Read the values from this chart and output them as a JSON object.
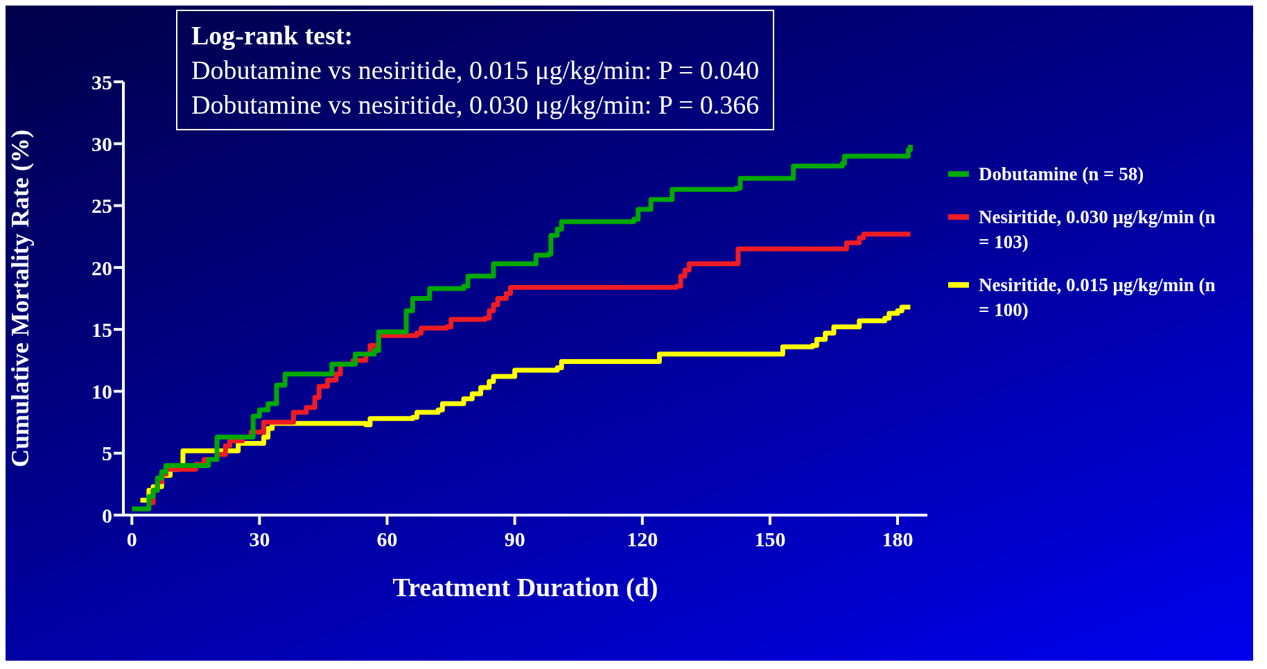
{
  "chart_data": {
    "type": "step",
    "xlabel": "Treatment Duration (d)",
    "ylabel": "Cumulative Mortality Rate (%)",
    "annotations": [
      "Log-rank test:",
      "Dobutamine vs nesiritide, 0.015 μg/kg/min: P = 0.040",
      "Dobutamine vs nesiritide, 0.030 μg/kg/min: P = 0.366"
    ],
    "xlim": [
      -2,
      187
    ],
    "xticks": [
      0,
      30,
      60,
      90,
      120,
      150,
      180
    ],
    "ylim": [
      0,
      35
    ],
    "yticks": [
      0,
      5,
      10,
      15,
      20,
      25,
      30,
      35
    ],
    "grid": false,
    "legend": "right",
    "marker": "none",
    "line_style": "solid",
    "series": [
      {
        "name": "Dobutamine (n = 58)",
        "color": "#00a800",
        "x": [
          0,
          3,
          4,
          5,
          6,
          7,
          8,
          17,
          18,
          20,
          28,
          28.5,
          30,
          32,
          34,
          36,
          46,
          47,
          52,
          52.5,
          57,
          58,
          64,
          64.5,
          66,
          70,
          78,
          79,
          84,
          85,
          94,
          95,
          98,
          98.5,
          100,
          101,
          118,
          119,
          122,
          127,
          142,
          143,
          155,
          155.5,
          167,
          167.5,
          182,
          182.5,
          183
        ],
        "values": [
          0.5,
          0.5,
          1.5,
          2,
          3,
          3.5,
          4,
          4,
          4.5,
          6.3,
          6.3,
          8,
          8.5,
          9,
          10.5,
          11.4,
          11.4,
          12.2,
          12.2,
          13,
          13.3,
          14.8,
          14.8,
          16.5,
          17.5,
          18.3,
          18.5,
          19.3,
          19.3,
          20.3,
          20.3,
          21,
          21.1,
          22.6,
          23.1,
          23.7,
          23.9,
          24.7,
          25.5,
          26.3,
          26.4,
          27.2,
          27.2,
          28.2,
          28.4,
          29,
          29,
          29.5,
          29.9
        ]
      },
      {
        "name": "Nesiritide, 0.030 μg/kg/min (n = 103)",
        "color": "#ee1c24",
        "x": [
          4,
          5,
          6,
          7,
          8,
          14,
          15,
          17,
          20,
          22,
          23,
          26,
          28,
          31,
          37,
          38,
          41,
          43,
          44,
          46,
          48,
          49,
          52,
          55,
          56,
          58,
          67,
          68,
          74,
          75,
          83,
          84,
          85,
          86,
          88,
          89,
          128,
          129,
          130,
          131,
          142,
          142.5,
          167,
          168,
          171,
          172,
          183
        ],
        "values": [
          1,
          2,
          2.7,
          3.3,
          3.7,
          3.7,
          4.1,
          4.5,
          4.9,
          5.6,
          6,
          6.3,
          6.7,
          7.5,
          7.5,
          8.3,
          8.7,
          9.5,
          10.4,
          10.9,
          11.4,
          12.2,
          12.5,
          13,
          13.7,
          14.5,
          14.7,
          15.1,
          15.2,
          15.8,
          15.9,
          16.5,
          17,
          17.5,
          17.9,
          18.4,
          18.5,
          19.3,
          19.8,
          20.3,
          20.3,
          21.5,
          21.5,
          22,
          22.4,
          22.7,
          22.7
        ]
      },
      {
        "name": "Nesiritide, 0.015 μg/kg/min (n = 100)",
        "color": "#ffff00",
        "x": [
          2,
          4,
          5,
          7,
          9,
          11,
          12,
          24,
          25,
          30,
          31,
          32,
          33,
          55,
          56,
          66,
          67,
          72,
          73,
          77,
          78,
          80,
          82,
          84,
          85,
          89,
          90,
          100,
          101,
          123,
          124,
          152,
          153,
          160,
          161,
          163,
          165,
          170,
          171,
          177,
          178,
          180,
          181,
          183
        ],
        "values": [
          1.2,
          2,
          2.3,
          3.2,
          3.7,
          3.9,
          5.2,
          5.2,
          5.8,
          5.8,
          6.3,
          7,
          7.4,
          7.3,
          7.8,
          7.9,
          8.3,
          8.5,
          9,
          9,
          9.4,
          9.8,
          10.3,
          10.8,
          11.2,
          11.2,
          11.7,
          11.9,
          12.4,
          12.4,
          13,
          13,
          13.6,
          13.7,
          14.2,
          14.7,
          15.2,
          15.2,
          15.7,
          15.9,
          16.3,
          16.5,
          16.8,
          16.8
        ]
      }
    ]
  }
}
